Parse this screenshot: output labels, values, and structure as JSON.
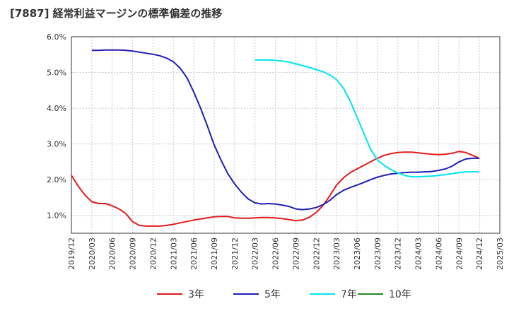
{
  "chart_data": {
    "type": "line",
    "title": "[7887]  経常利益マージンの標準偏差の推移",
    "ylim": [
      0.5,
      6.0
    ],
    "y_ticks": [
      "6.0%",
      "5.0%",
      "4.0%",
      "3.0%",
      "2.0%",
      "1.0%"
    ],
    "y_tick_values": [
      6.0,
      5.0,
      4.0,
      3.0,
      2.0,
      1.0
    ],
    "x_ticks": [
      "2019/12",
      "2020/03",
      "2020/06",
      "2020/09",
      "2020/12",
      "2021/03",
      "2021/06",
      "2021/09",
      "2021/12",
      "2022/03",
      "2022/06",
      "2022/09",
      "2022/12",
      "2023/03",
      "2023/06",
      "2023/09",
      "2023/12",
      "2024/03",
      "2024/06",
      "2024/09",
      "2024/12",
      "2025/03"
    ],
    "grid": true,
    "legend_position": "bottom",
    "series": [
      {
        "name": "3年",
        "color": "#e31a1c",
        "x": [
          "2019/12",
          "2020/01",
          "2020/02",
          "2020/03",
          "2020/04",
          "2020/05",
          "2020/06",
          "2020/07",
          "2020/08",
          "2020/09",
          "2020/10",
          "2020/11",
          "2020/12",
          "2021/01",
          "2021/02",
          "2021/03",
          "2021/04",
          "2021/05",
          "2021/06",
          "2021/07",
          "2021/08",
          "2021/09",
          "2021/10",
          "2021/11",
          "2021/12",
          "2022/01",
          "2022/02",
          "2022/03",
          "2022/04",
          "2022/05",
          "2022/06",
          "2022/07",
          "2022/08",
          "2022/09",
          "2022/10",
          "2022/11",
          "2022/12",
          "2023/01",
          "2023/02",
          "2023/03",
          "2023/04",
          "2023/05",
          "2023/06",
          "2023/07",
          "2023/08",
          "2023/09",
          "2023/10",
          "2023/11",
          "2023/12",
          "2024/01",
          "2024/02",
          "2024/03",
          "2024/04",
          "2024/05",
          "2024/06",
          "2024/07",
          "2024/08",
          "2024/09",
          "2024/10",
          "2024/11",
          "2024/12"
        ],
        "values": [
          2.12,
          1.82,
          1.57,
          1.38,
          1.33,
          1.33,
          1.27,
          1.18,
          1.05,
          0.82,
          0.72,
          0.7,
          0.7,
          0.7,
          0.72,
          0.75,
          0.79,
          0.83,
          0.87,
          0.9,
          0.93,
          0.96,
          0.97,
          0.97,
          0.93,
          0.92,
          0.92,
          0.93,
          0.94,
          0.94,
          0.93,
          0.91,
          0.88,
          0.85,
          0.87,
          0.95,
          1.08,
          1.28,
          1.55,
          1.85,
          2.05,
          2.2,
          2.3,
          2.4,
          2.5,
          2.6,
          2.68,
          2.73,
          2.76,
          2.77,
          2.77,
          2.75,
          2.73,
          2.71,
          2.7,
          2.71,
          2.74,
          2.79,
          2.76,
          2.68,
          2.6
        ]
      },
      {
        "name": "5年",
        "color": "#1f1fb4",
        "x": [
          "2020/03",
          "2020/04",
          "2020/05",
          "2020/06",
          "2020/07",
          "2020/08",
          "2020/09",
          "2020/10",
          "2020/11",
          "2020/12",
          "2021/01",
          "2021/02",
          "2021/03",
          "2021/04",
          "2021/05",
          "2021/06",
          "2021/07",
          "2021/08",
          "2021/09",
          "2021/10",
          "2021/11",
          "2021/12",
          "2022/01",
          "2022/02",
          "2022/03",
          "2022/04",
          "2022/05",
          "2022/06",
          "2022/07",
          "2022/08",
          "2022/09",
          "2022/10",
          "2022/11",
          "2022/12",
          "2023/01",
          "2023/02",
          "2023/03",
          "2023/04",
          "2023/05",
          "2023/06",
          "2023/07",
          "2023/08",
          "2023/09",
          "2023/10",
          "2023/11",
          "2023/12",
          "2024/01",
          "2024/02",
          "2024/03",
          "2024/04",
          "2024/05",
          "2024/06",
          "2024/07",
          "2024/08",
          "2024/09",
          "2024/10",
          "2024/11",
          "2024/12"
        ],
        "values": [
          5.62,
          5.62,
          5.63,
          5.63,
          5.63,
          5.62,
          5.6,
          5.57,
          5.54,
          5.51,
          5.47,
          5.4,
          5.3,
          5.12,
          4.85,
          4.45,
          4.0,
          3.5,
          2.97,
          2.55,
          2.17,
          1.88,
          1.65,
          1.46,
          1.35,
          1.32,
          1.33,
          1.32,
          1.29,
          1.25,
          1.18,
          1.16,
          1.18,
          1.22,
          1.3,
          1.42,
          1.58,
          1.7,
          1.78,
          1.85,
          1.92,
          2.0,
          2.07,
          2.12,
          2.16,
          2.18,
          2.2,
          2.21,
          2.21,
          2.22,
          2.23,
          2.26,
          2.3,
          2.38,
          2.5,
          2.58,
          2.6,
          2.6
        ]
      },
      {
        "name": "7年",
        "color": "#00e5ee",
        "x": [
          "2022/03",
          "2022/04",
          "2022/05",
          "2022/06",
          "2022/07",
          "2022/08",
          "2022/09",
          "2022/10",
          "2022/11",
          "2022/12",
          "2023/01",
          "2023/02",
          "2023/03",
          "2023/04",
          "2023/05",
          "2023/06",
          "2023/07",
          "2023/08",
          "2023/09",
          "2023/10",
          "2023/11",
          "2023/12",
          "2024/01",
          "2024/02",
          "2024/03",
          "2024/04",
          "2024/05",
          "2024/06",
          "2024/07",
          "2024/08",
          "2024/09",
          "2024/10",
          "2024/11",
          "2024/12"
        ],
        "values": [
          5.35,
          5.35,
          5.35,
          5.34,
          5.32,
          5.29,
          5.24,
          5.19,
          5.14,
          5.08,
          5.02,
          4.93,
          4.8,
          4.56,
          4.2,
          3.75,
          3.3,
          2.85,
          2.55,
          2.4,
          2.28,
          2.19,
          2.12,
          2.08,
          2.08,
          2.09,
          2.1,
          2.12,
          2.14,
          2.17,
          2.2,
          2.22,
          2.22,
          2.22
        ]
      },
      {
        "name": "10年",
        "color": "#228b22",
        "x": [],
        "values": []
      }
    ]
  }
}
